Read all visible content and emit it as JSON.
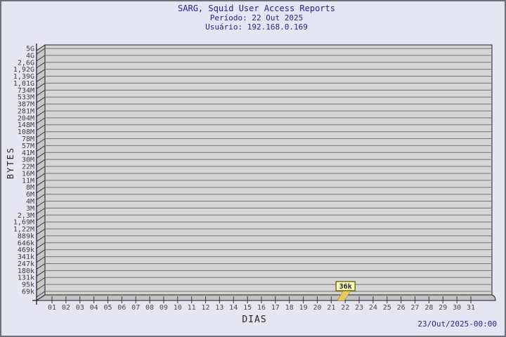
{
  "page": {
    "background": "#e5e5f4",
    "border_color": "#70707a"
  },
  "header": {
    "title": "SARG, Squid User Access Reports",
    "period": "Período: 22 Out 2025",
    "user": "Usuário: 192.168.0.169",
    "text_color": "#22229a"
  },
  "footer": {
    "timestamp": "23/Out/2025-00:00"
  },
  "chart_data": {
    "type": "line",
    "title": "SARG, Squid User Access Reports",
    "subtitle": "Período: 22 Out 2025",
    "user": "Usuário: 192.168.0.169",
    "xlabel": "DIAS",
    "ylabel": "BYTES",
    "y_scale": "logarithmic",
    "grid": "horizontal",
    "x_ticks": [
      "01",
      "02",
      "03",
      "04",
      "05",
      "06",
      "07",
      "08",
      "09",
      "10",
      "11",
      "12",
      "13",
      "14",
      "15",
      "16",
      "17",
      "18",
      "19",
      "20",
      "21",
      "22",
      "23",
      "24",
      "25",
      "26",
      "27",
      "28",
      "29",
      "30",
      "31"
    ],
    "y_ticks": [
      "5G",
      "4G",
      "2,6G",
      "1,92G",
      "1,39G",
      "1,01G",
      "734M",
      "533M",
      "387M",
      "281M",
      "204M",
      "148M",
      "108M",
      "78M",
      "57M",
      "41M",
      "30M",
      "22M",
      "16M",
      "11M",
      "8M",
      "6M",
      "4M",
      "3M",
      "2,3M",
      "1,69M",
      "1,22M",
      "889k",
      "646k",
      "469k",
      "341k",
      "247k",
      "180k",
      "131k",
      "95k",
      "69k"
    ],
    "series": [
      {
        "name": "192.168.0.169",
        "points": [
          {
            "x": "22",
            "value": "36k"
          }
        ]
      }
    ],
    "colors": {
      "plot_bg": "#d5d5d5",
      "gridline": "#747474",
      "wall": "#c7c7c7",
      "floor": "#c2c2c2",
      "frame": "#1a1a1a",
      "axis": "#111111",
      "tick_text": "#3e3e3e",
      "marker_box_bg": "#ffffc8",
      "marker_box_border": "#6b6b00",
      "marker_arrow": "#ecc95f",
      "marker_arrow_edge": "#a08020"
    }
  }
}
